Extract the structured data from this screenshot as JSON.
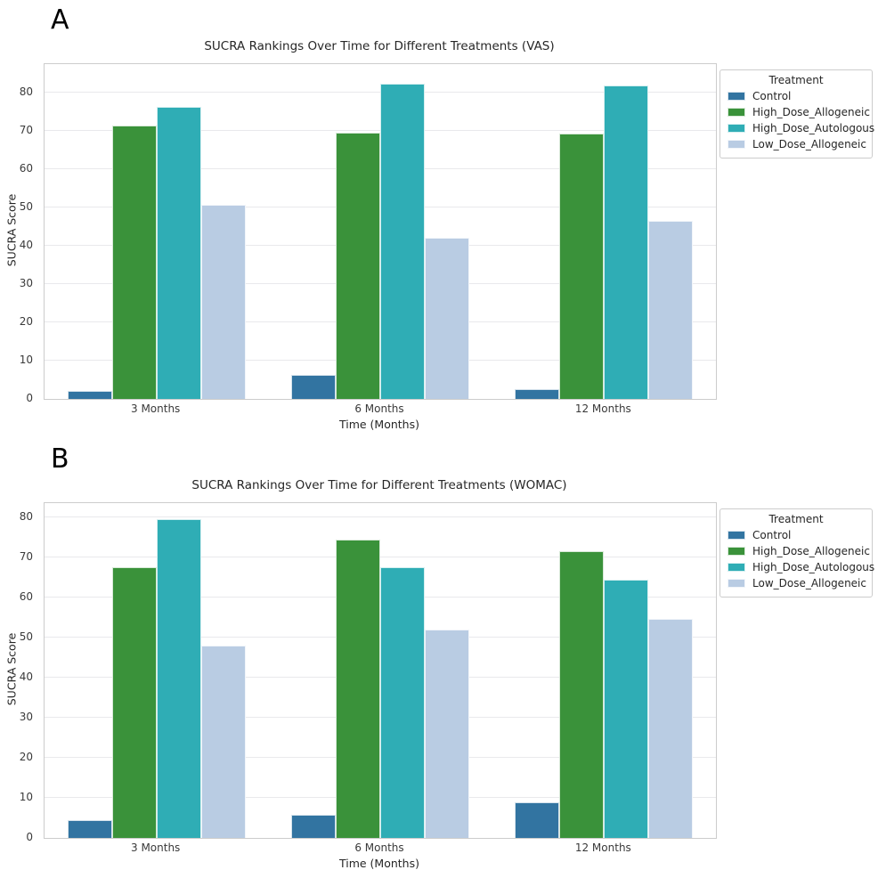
{
  "figure": {
    "background_color": "#ffffff",
    "grid_color": "#e9e9ec",
    "spine_color": "#cccccc",
    "text_color": "#262626"
  },
  "chart_data": [
    {
      "type": "bar",
      "panel_label": "A",
      "title": "SUCRA Rankings Over Time for Different Treatments (VAS)",
      "xlabel": "Time (Months)",
      "ylabel": "SUCRA Score",
      "categories": [
        "3 Months",
        "6 Months",
        "12 Months"
      ],
      "series": [
        {
          "name": "Control",
          "color": "#3274a1",
          "values": [
            2.1,
            6.2,
            2.6
          ]
        },
        {
          "name": "High_Dose_Allogeneic",
          "color": "#3a923a",
          "values": [
            71.4,
            69.5,
            69.4
          ]
        },
        {
          "name": "High_Dose_Autologous",
          "color": "#2fadb5",
          "values": [
            76.4,
            82.5,
            81.9
          ]
        },
        {
          "name": "Low_Dose_Allogeneic",
          "color": "#b9cce3",
          "values": [
            50.7,
            42.2,
            46.5
          ]
        }
      ],
      "ylim": [
        0,
        87.5
      ],
      "yticks": [
        0,
        10,
        20,
        30,
        40,
        50,
        60,
        70,
        80
      ],
      "legend_title": "Treatment",
      "legend_position": "outside-top-right",
      "grid": "horizontal"
    },
    {
      "type": "bar",
      "panel_label": "B",
      "title": "SUCRA Rankings Over Time for Different Treatments (WOMAC)",
      "xlabel": "Time (Months)",
      "ylabel": "SUCRA Score",
      "categories": [
        "3 Months",
        "6 Months",
        "12 Months"
      ],
      "series": [
        {
          "name": "Control",
          "color": "#3274a1",
          "values": [
            4.4,
            5.7,
            8.9
          ]
        },
        {
          "name": "High_Dose_Allogeneic",
          "color": "#3a923a",
          "values": [
            67.7,
            74.4,
            71.7
          ]
        },
        {
          "name": "High_Dose_Autologous",
          "color": "#2fadb5",
          "values": [
            79.6,
            67.6,
            64.5
          ]
        },
        {
          "name": "Low_Dose_Allogeneic",
          "color": "#b9cce3",
          "values": [
            48.1,
            52.1,
            54.7
          ]
        }
      ],
      "ylim": [
        0,
        83.6
      ],
      "yticks": [
        0,
        10,
        20,
        30,
        40,
        50,
        60,
        70,
        80
      ],
      "legend_title": "Treatment",
      "legend_position": "outside-top-right",
      "grid": "horizontal"
    }
  ]
}
